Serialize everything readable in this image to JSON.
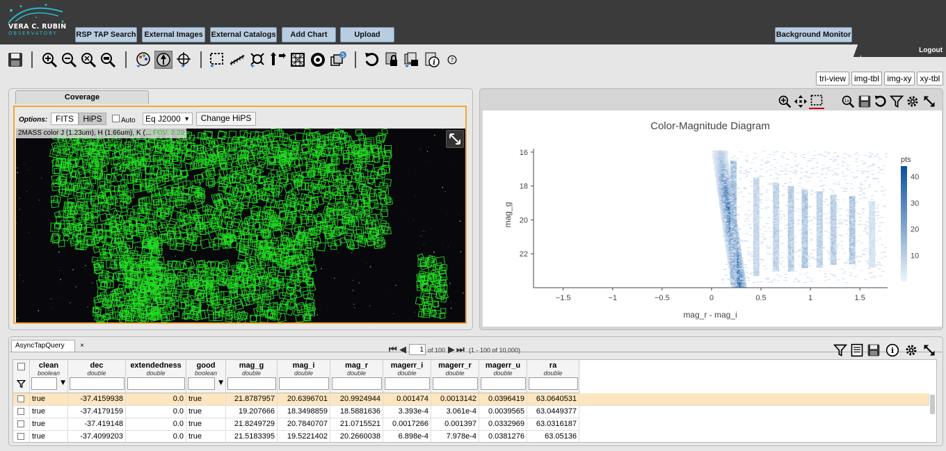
{
  "brand": {
    "name": "VERA C. RUBIN",
    "sub": "OBSERVATORY"
  },
  "menu": [
    "RSP TAP Search",
    "External Images",
    "External Catalogs",
    "Add Chart",
    "Upload"
  ],
  "background_monitor": "Background Monitor",
  "logout": "Logout",
  "layout_buttons": [
    "tri-view",
    "img-tbl",
    "img-xy",
    "xy-tbl"
  ],
  "toolbar_badge": "5",
  "coverage": {
    "tab": "Coverage",
    "options_label": "Options:",
    "fits": "FITS",
    "hips": "HiPS",
    "auto": "Auto",
    "coord_select": "Eq J2000",
    "change_hips": "Change HiPS",
    "hips_title": "2MASS color J (1.23um), H (1.66um), K (...",
    "fov": "FOV: 2.29"
  },
  "chart_data": {
    "type": "heatmap",
    "title": "Color-Magnitude Diagram",
    "xlabel": "mag_r - mag_i",
    "ylabel": "mag_g",
    "xlim": [
      -1.8,
      1.78
    ],
    "ylim": [
      24.0,
      15.8
    ],
    "xticks": [
      -1.5,
      -1,
      -0.5,
      0,
      0.5,
      1,
      1.5
    ],
    "yticks": [
      16,
      18,
      20,
      22
    ],
    "colorbar": {
      "label": "pts",
      "ticks": [
        10,
        20,
        30,
        40
      ],
      "range": [
        0,
        44
      ]
    },
    "density_ridge": [
      {
        "x": 0.08,
        "y_from": 15.9,
        "y_to": 24.0,
        "peak": 44
      },
      {
        "x": 0.22,
        "y_from": 16.5,
        "y_to": 23.8,
        "peak": 22
      },
      {
        "x": 0.45,
        "y_from": 17.5,
        "y_to": 23.3,
        "peak": 12
      },
      {
        "x": 0.65,
        "y_from": 17.8,
        "y_to": 23.0,
        "peak": 14
      },
      {
        "x": 0.8,
        "y_from": 18.0,
        "y_to": 23.0,
        "peak": 16
      },
      {
        "x": 0.94,
        "y_from": 18.2,
        "y_to": 22.8,
        "peak": 18
      },
      {
        "x": 1.09,
        "y_from": 18.3,
        "y_to": 22.8,
        "peak": 14
      },
      {
        "x": 1.23,
        "y_from": 18.5,
        "y_to": 22.6,
        "peak": 16
      },
      {
        "x": 1.42,
        "y_from": 18.6,
        "y_to": 22.6,
        "peak": 18
      },
      {
        "x": 1.62,
        "y_from": 18.9,
        "y_to": 22.8,
        "peak": 8
      }
    ]
  },
  "table": {
    "tab": "AsyncTapQuery",
    "page": "1",
    "of_pages": "of 100",
    "range": "(1 - 100 of 10,000)",
    "columns": [
      {
        "name": "clean",
        "type": "boolean"
      },
      {
        "name": "dec",
        "type": "double"
      },
      {
        "name": "extendedness",
        "type": "double"
      },
      {
        "name": "good",
        "type": "boolean"
      },
      {
        "name": "mag_g",
        "type": "double"
      },
      {
        "name": "mag_i",
        "type": "double"
      },
      {
        "name": "mag_r",
        "type": "double"
      },
      {
        "name": "magerr_i",
        "type": "double"
      },
      {
        "name": "magerr_r",
        "type": "double"
      },
      {
        "name": "magerr_u",
        "type": "double"
      },
      {
        "name": "ra",
        "type": "double"
      }
    ],
    "rows": [
      [
        "true",
        "-37.4159938",
        "0.0",
        "true",
        "21.8787957",
        "20.6396701",
        "20.9924944",
        "0.001474",
        "0.0013142",
        "0.0396419",
        "63.0640531"
      ],
      [
        "true",
        "-37.4179159",
        "0.0",
        "true",
        "19.207666",
        "18.3498859",
        "18.5881636",
        "3.393e-4",
        "3.061e-4",
        "0.0039565",
        "63.0449377"
      ],
      [
        "true",
        "-37.419148",
        "0.0",
        "true",
        "21.8249729",
        "20.7840707",
        "21.0715521",
        "0.0017266",
        "0.001397",
        "0.0332969",
        "63.0316187"
      ],
      [
        "true",
        "-37.4099203",
        "0.0",
        "true",
        "21.5183395",
        "19.5221402",
        "20.2660038",
        "6.898e-4",
        "7.978e-4",
        "0.0381276",
        "63.05136"
      ]
    ]
  }
}
